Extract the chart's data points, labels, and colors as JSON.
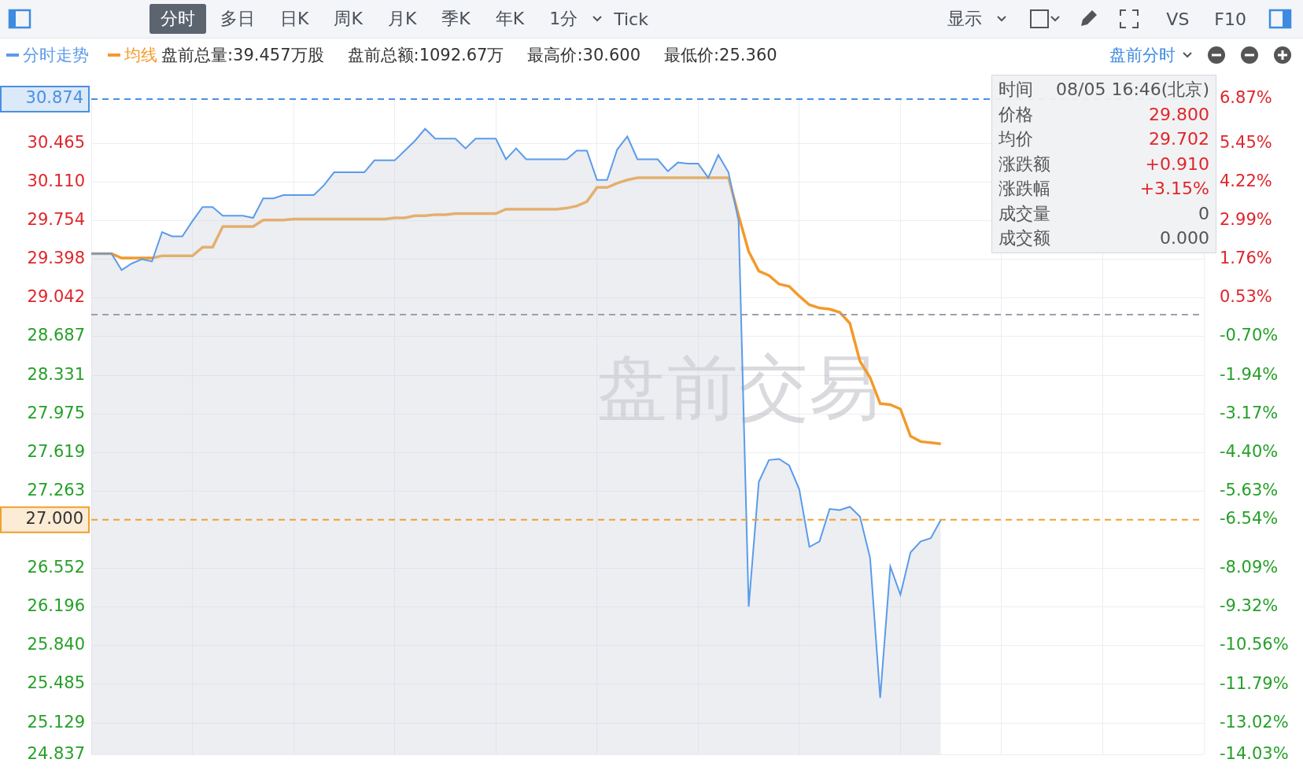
{
  "chart_data": {
    "type": "line",
    "categories": [
      null,
      null,
      null,
      null,
      null,
      null,
      null,
      null,
      null,
      null,
      null,
      null,
      null,
      null,
      null,
      null,
      null,
      null,
      null,
      null,
      null,
      null,
      null,
      null,
      null,
      null,
      null,
      null,
      null,
      null,
      null,
      null,
      null,
      null,
      null,
      null,
      null,
      null,
      null,
      null,
      null,
      null,
      null,
      null,
      null,
      null,
      null,
      null,
      null,
      null,
      null,
      null,
      null,
      null,
      null,
      null,
      null,
      null,
      null,
      null,
      null,
      null,
      null,
      null,
      null,
      null,
      null,
      null,
      null,
      null,
      null,
      null,
      null,
      null,
      null,
      null,
      null,
      null,
      null,
      null,
      null,
      null,
      null,
      null,
      null,
      null,
      null,
      null,
      null,
      null,
      null,
      null,
      null,
      null,
      null,
      null,
      null,
      null,
      null,
      null,
      null,
      null,
      null,
      null,
      null,
      null,
      null,
      null,
      null,
      null,
      null
    ],
    "series": [
      {
        "name": "分时走势",
        "type": "area",
        "color": "#5b9bea",
        "values": [
          29.45,
          29.45,
          29.45,
          29.3,
          29.36,
          29.4,
          29.38,
          29.65,
          29.61,
          29.61,
          29.75,
          29.88,
          29.88,
          29.8,
          29.8,
          29.8,
          29.78,
          29.96,
          29.96,
          29.99,
          29.99,
          29.99,
          29.99,
          30.08,
          30.2,
          30.2,
          30.2,
          30.2,
          30.31,
          30.31,
          30.31,
          30.4,
          30.49,
          30.6,
          30.51,
          30.51,
          30.51,
          30.42,
          30.51,
          30.51,
          30.51,
          30.32,
          30.42,
          30.32,
          30.32,
          30.32,
          30.32,
          30.32,
          30.4,
          30.4,
          30.13,
          30.13,
          30.41,
          30.53,
          30.32,
          30.32,
          30.32,
          30.21,
          30.29,
          30.28,
          30.28,
          30.15,
          30.36,
          30.2,
          29.75,
          26.2,
          27.35,
          27.55,
          27.56,
          27.5,
          27.28,
          26.75,
          26.8,
          27.1,
          27.09,
          27.12,
          27.03,
          26.65,
          25.36,
          26.57,
          26.31,
          26.7,
          26.8,
          26.83,
          27.0,
          null,
          null,
          null,
          null,
          null,
          null,
          null,
          null,
          null,
          null,
          null,
          null,
          null,
          null,
          null,
          null,
          null,
          null,
          null,
          null,
          null,
          null,
          null,
          null,
          null,
          null
        ]
      },
      {
        "name": "均线",
        "type": "line",
        "color": "#f39a2b",
        "values": [
          29.45,
          29.45,
          29.45,
          29.41,
          29.41,
          29.41,
          29.41,
          29.43,
          29.43,
          29.43,
          29.43,
          29.51,
          29.51,
          29.7,
          29.7,
          29.7,
          29.7,
          29.76,
          29.76,
          29.76,
          29.77,
          29.77,
          29.77,
          29.77,
          29.77,
          29.77,
          29.77,
          29.77,
          29.77,
          29.77,
          29.78,
          29.78,
          29.8,
          29.8,
          29.81,
          29.81,
          29.82,
          29.82,
          29.82,
          29.82,
          29.82,
          29.86,
          29.86,
          29.86,
          29.86,
          29.86,
          29.86,
          29.87,
          29.89,
          29.93,
          30.06,
          30.06,
          30.1,
          30.13,
          30.15,
          30.15,
          30.15,
          30.15,
          30.15,
          30.15,
          30.15,
          30.15,
          30.15,
          30.15,
          29.8,
          29.47,
          29.29,
          29.25,
          29.17,
          29.15,
          29.06,
          28.98,
          28.95,
          28.94,
          28.91,
          28.81,
          28.46,
          28.31,
          28.07,
          28.06,
          28.02,
          27.77,
          27.72,
          27.71,
          27.7,
          null,
          null,
          null,
          null,
          null,
          null,
          null,
          null,
          null,
          null,
          null,
          null,
          null,
          null,
          null,
          null,
          null,
          null,
          null,
          null,
          null,
          null,
          null,
          null,
          null,
          null
        ]
      }
    ],
    "ylim": [
      24.837,
      30.874
    ],
    "yticks": [
      30.465,
      {
        "value": 30.11,
        "label": "30.110"
      },
      29.754,
      29.398,
      29.042,
      28.687,
      28.331,
      27.975,
      27.619,
      27.263,
      26.552,
      26.196,
      {
        "value": 25.84,
        "label": "25.840"
      },
      25.485,
      25.129,
      24.837
    ],
    "y2lim": [
      -14.03,
      6.87
    ],
    "y2ticks": [
      {
        "value": 6.87,
        "label": "6.87%"
      },
      {
        "value": 5.45,
        "label": "5.45%"
      },
      {
        "value": 4.22,
        "label": "4.22%"
      },
      {
        "value": 2.99,
        "label": "2.99%"
      },
      {
        "value": 1.76,
        "label": "1.76%"
      },
      {
        "value": 0.53,
        "label": "0.53%"
      },
      {
        "value": -0.7,
        "label": "-0.70%"
      },
      {
        "value": -1.94,
        "label": "-1.94%"
      },
      {
        "value": -3.17,
        "label": "-3.17%"
      },
      {
        "value": -4.4,
        "label": "-4.40%"
      },
      {
        "value": -5.63,
        "label": "-5.63%"
      },
      {
        "value": -6.54,
        "label": "-6.54%"
      },
      {
        "value": -8.09,
        "label": "-8.09%"
      },
      {
        "value": -9.32,
        "label": "-9.32%"
      },
      {
        "value": -10.56,
        "label": "-10.56%"
      },
      {
        "value": -11.79,
        "label": "-11.79%"
      },
      {
        "value": -13.02,
        "label": "-13.02%"
      },
      {
        "value": -14.03,
        "label": "-14.03%"
      }
    ],
    "ref_lines": [
      {
        "axis": "y",
        "value": 30.874,
        "label": "30.874",
        "color": "#4a90e2",
        "line_style": "dashed"
      },
      {
        "axis": "y",
        "value": 27.0,
        "label": "27.000",
        "color": "#f0a030",
        "line_style": "dashed"
      },
      {
        "axis": "y",
        "value": 28.89,
        "color": "#9aa0ae",
        "line_style": "dashed"
      }
    ],
    "grid": true,
    "legend": "top left",
    "marker": "none",
    "annotations": [
      "分时",
      "多日",
      "日K",
      "周K",
      "月K",
      "季K",
      "年K",
      "1分",
      "Tick",
      "显示",
      "VS",
      "F10",
      "盘前总量:39.457万股",
      "盘前总额:1092.67万",
      "最高价:30.600",
      "最低价:25.360",
      "盘前分时",
      "盘前交易",
      "时间",
      "08/05 16:46(北京)",
      "价格",
      "29.800",
      "均价",
      "29.702",
      "涨跌额",
      "+0.910",
      "涨跌幅",
      "+3.15%",
      "成交量",
      "0",
      "成交额",
      "0.000"
    ]
  }
}
